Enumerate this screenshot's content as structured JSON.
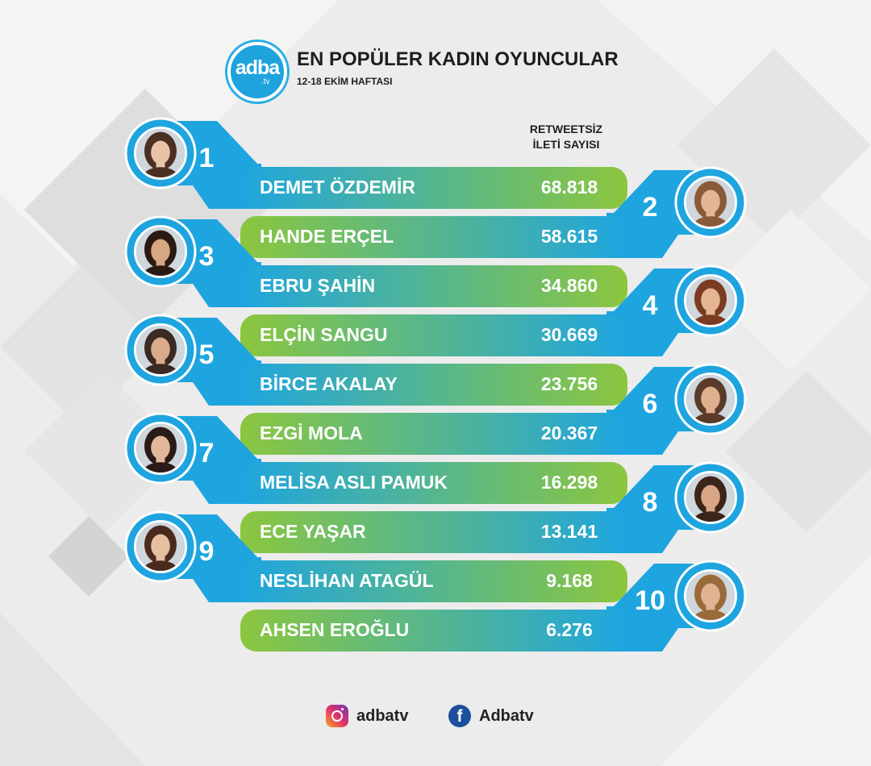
{
  "header": {
    "logo_text": "adba",
    "logo_sub": ".tv",
    "title": "EN POPÜLER KADIN OYUNCULAR",
    "subtitle": "12-18 EKİM HAFTASI"
  },
  "column_header": {
    "line1": "RETWEETSİZ",
    "line2": "İLETİ SAYISI"
  },
  "ranking": [
    {
      "rank": "1",
      "name": "DEMET ÖZDEMİR",
      "value": "68.818"
    },
    {
      "rank": "2",
      "name": "HANDE ERÇEL",
      "value": "58.615"
    },
    {
      "rank": "3",
      "name": "EBRU ŞAHİN",
      "value": "34.860"
    },
    {
      "rank": "4",
      "name": "ELÇİN SANGU",
      "value": "30.669"
    },
    {
      "rank": "5",
      "name": "BİRCE AKALAY",
      "value": "23.756"
    },
    {
      "rank": "6",
      "name": "EZGİ MOLA",
      "value": "20.367"
    },
    {
      "rank": "7",
      "name": "MELİSA ASLI PAMUK",
      "value": "16.298"
    },
    {
      "rank": "8",
      "name": "ECE YAŞAR",
      "value": "13.141"
    },
    {
      "rank": "9",
      "name": "NESLİHAN ATAGÜL",
      "value": "9.168"
    },
    {
      "rank": "10",
      "name": "AHSEN EROĞLU",
      "value": "6.276"
    }
  ],
  "footer": {
    "instagram_handle": "adbatv",
    "facebook_handle": "Adbatv",
    "instagram_icon": "instagram-icon",
    "facebook_icon": "facebook-icon"
  },
  "colors": {
    "blue": "#1ea5e0",
    "green": "#8cc63e",
    "text_dark": "#1e1e1e"
  }
}
